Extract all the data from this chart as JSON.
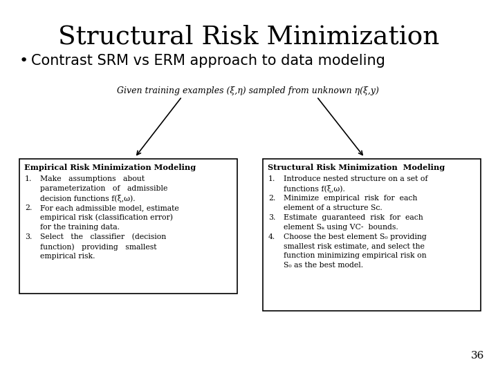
{
  "title": "Structural Risk Minimization",
  "bullet": "Contrast SRM vs ERM approach to data modeling",
  "top_text": "Given training examples (x,y) sampled from unknown P(x,y)",
  "left_box_title": "Empirical Risk Minimization Modeling",
  "right_box_title": "Structural Risk Minimization  Modeling",
  "page_number": "36",
  "bg_color": "#ffffff",
  "text_color": "#000000",
  "box_color": "#000000"
}
